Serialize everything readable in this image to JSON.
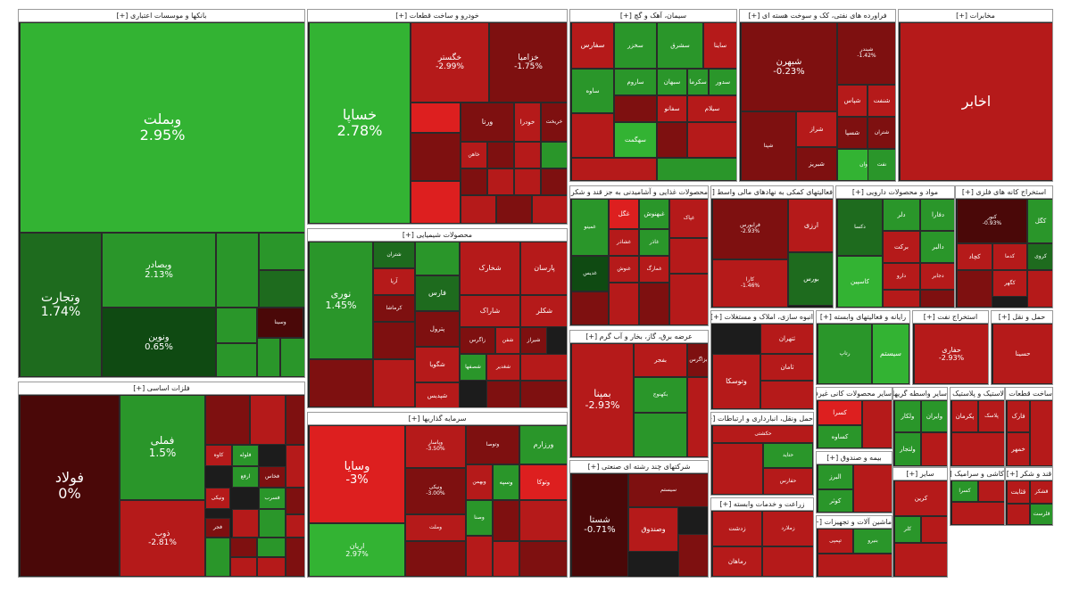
{
  "chart_data": {
    "type": "treemap",
    "title": "",
    "colors": {
      "strong_green": "#33b333",
      "green": "#2a962a",
      "dark_green": "#1e6b1e",
      "deep_green": "#0f4a12",
      "bright_red": "#dd1f1f",
      "red": "#b51a1a",
      "dark_red": "#7e1010",
      "maroon": "#4a0808"
    },
    "sectors": [
      {
        "name": "بانکها و موسسات اعتباری [+]",
        "stocks": [
          {
            "name": "وبملت",
            "change": "2.95%"
          },
          {
            "name": "وتجارت",
            "change": "1.74%"
          },
          {
            "name": "وبصادر",
            "change": "2.13%"
          },
          {
            "name": "ونوین",
            "change": "0.65%"
          },
          {
            "name": "وسینا",
            "change": ""
          }
        ]
      },
      {
        "name": "فلزات اساسی [+]",
        "stocks": [
          {
            "name": "فولاد",
            "change": "0%"
          },
          {
            "name": "فملی",
            "change": "1.5%"
          },
          {
            "name": "ذوب",
            "change": "-2.81%"
          },
          {
            "name": "کاوه",
            "change": ""
          },
          {
            "name": "فلوله",
            "change": ""
          },
          {
            "name": "فجر",
            "change": ""
          },
          {
            "name": "ارفع",
            "change": ""
          },
          {
            "name": "ونیکی",
            "change": ""
          },
          {
            "name": "فخاس",
            "change": ""
          },
          {
            "name": "فسرب",
            "change": ""
          }
        ]
      },
      {
        "name": "خودرو و ساخت قطعات [+]",
        "stocks": [
          {
            "name": "خساپا",
            "change": "2.78%"
          },
          {
            "name": "خگستر",
            "change": "-2.99%"
          },
          {
            "name": "خزامیا",
            "change": "-1.75%"
          },
          {
            "name": "ورنا",
            "change": ""
          },
          {
            "name": "خودرا",
            "change": ""
          },
          {
            "name": "خریخت",
            "change": ""
          },
          {
            "name": "خاهن",
            "change": ""
          }
        ]
      },
      {
        "name": "محصولات شیمیایی [+]",
        "stocks": [
          {
            "name": "نوری",
            "change": "1.45%"
          },
          {
            "name": "شخارک",
            "change": ""
          },
          {
            "name": "فارس",
            "change": ""
          },
          {
            "name": "پارسان",
            "change": ""
          },
          {
            "name": "شکلر",
            "change": ""
          },
          {
            "name": "شاراک",
            "change": ""
          },
          {
            "name": "پترول",
            "change": ""
          },
          {
            "name": "شگویا",
            "change": ""
          },
          {
            "name": "شپدیس",
            "change": ""
          },
          {
            "name": "شتران",
            "change": ""
          },
          {
            "name": "زاگرس",
            "change": ""
          },
          {
            "name": "شفن",
            "change": ""
          },
          {
            "name": "شیراز",
            "change": ""
          },
          {
            "name": "شصفها",
            "change": ""
          },
          {
            "name": "آریا",
            "change": ""
          },
          {
            "name": "شغدیر",
            "change": ""
          },
          {
            "name": "کرماشا",
            "change": ""
          }
        ]
      },
      {
        "name": "سرمایه گذاریها [+]",
        "stocks": [
          {
            "name": "وسایا",
            "change": "-3%"
          },
          {
            "name": "وپاسار",
            "change": "-3.50%"
          },
          {
            "name": "ونیکی",
            "change": "-3.00%"
          },
          {
            "name": "وتوصا",
            "change": ""
          },
          {
            "name": "ورزارم",
            "change": ""
          },
          {
            "name": "وبهمن",
            "change": ""
          },
          {
            "name": "وصنا",
            "change": ""
          },
          {
            "name": "وسپه",
            "change": ""
          },
          {
            "name": "وتوکا",
            "change": ""
          },
          {
            "name": "وملت",
            "change": ""
          },
          {
            "name": "اریان",
            "change": "2.97%"
          }
        ]
      },
      {
        "name": "سیمان، آهک و گچ [+]",
        "stocks": [
          {
            "name": "سفارس",
            "change": ""
          },
          {
            "name": "سشرق",
            "change": ""
          },
          {
            "name": "ساینا",
            "change": ""
          },
          {
            "name": "سخزر",
            "change": ""
          },
          {
            "name": "سبهان",
            "change": ""
          },
          {
            "name": "ساروم",
            "change": ""
          },
          {
            "name": "سکرما",
            "change": ""
          },
          {
            "name": "سدور",
            "change": ""
          },
          {
            "name": "سفانو",
            "change": ""
          },
          {
            "name": "ساوه",
            "change": ""
          },
          {
            "name": "سیلام",
            "change": ""
          },
          {
            "name": "سهگمت",
            "change": ""
          }
        ]
      },
      {
        "name": "فراورده های نفتی، کک و سوخت هسته ای [+]",
        "stocks": [
          {
            "name": "شبهرن",
            "change": "-0.23%"
          },
          {
            "name": "شبندر",
            "change": "-1.42%"
          },
          {
            "name": "شپنا",
            "change": ""
          },
          {
            "name": "شراز",
            "change": ""
          },
          {
            "name": "شپاس",
            "change": ""
          },
          {
            "name": "شنفت",
            "change": ""
          },
          {
            "name": "شسپا",
            "change": ""
          },
          {
            "name": "شتران",
            "change": ""
          },
          {
            "name": "شبریز",
            "change": ""
          },
          {
            "name": "شاوان",
            "change": ""
          },
          {
            "name": "نفت",
            "change": ""
          }
        ]
      },
      {
        "name": "مخابرات [+]",
        "stocks": [
          {
            "name": "اخابر",
            "change": ""
          }
        ]
      },
      {
        "name": "محصولات غذایی و آشامیدنی به جز قند و شکر [+]",
        "stocks": [
          {
            "name": "غمینو",
            "change": ""
          },
          {
            "name": "غگل",
            "change": ""
          },
          {
            "name": "غبهنوش",
            "change": ""
          },
          {
            "name": "غپاک",
            "change": ""
          },
          {
            "name": "غشاذر",
            "change": ""
          },
          {
            "name": "غاذر",
            "change": ""
          },
          {
            "name": "غدیس",
            "change": ""
          },
          {
            "name": "غنوش",
            "change": ""
          },
          {
            "name": "غمارگ",
            "change": ""
          }
        ]
      },
      {
        "name": "فعالیتهای کمکی به نهادهای مالی واسط [+]",
        "stocks": [
          {
            "name": "ارزی",
            "change": ""
          },
          {
            "name": "فرابورس",
            "change": "-2.93%"
          },
          {
            "name": "بورس",
            "change": ""
          },
          {
            "name": "کارا",
            "change": "-1.46%"
          }
        ]
      },
      {
        "name": "مواد و محصولات دارویی [+]",
        "stocks": [
          {
            "name": "دلر",
            "change": ""
          },
          {
            "name": "دفارا",
            "change": ""
          },
          {
            "name": "برکت",
            "change": ""
          },
          {
            "name": "دالبر",
            "change": ""
          },
          {
            "name": "دکسا",
            "change": ""
          },
          {
            "name": "کاسپین",
            "change": ""
          },
          {
            "name": "دارو",
            "change": ""
          },
          {
            "name": "دجابر",
            "change": ""
          }
        ]
      },
      {
        "name": "استخراج کانه های فلزی [+]",
        "stocks": [
          {
            "name": "کچاد",
            "change": ""
          },
          {
            "name": "کگل",
            "change": ""
          },
          {
            "name": "کنور",
            "change": "-0.93%"
          },
          {
            "name": "کدما",
            "change": ""
          },
          {
            "name": "کگهر",
            "change": ""
          },
          {
            "name": "کروی",
            "change": ""
          }
        ]
      },
      {
        "name": "عرضه برق، گاز، بخار و آب گرم [+]",
        "stocks": [
          {
            "name": "بمپنا",
            "change": "-2.93%"
          },
          {
            "name": "بفجر",
            "change": ""
          },
          {
            "name": "بزاگرس",
            "change": ""
          },
          {
            "name": "بکهنوج",
            "change": ""
          }
        ]
      },
      {
        "name": "شرکتهای چند رشته ای صنعتی [+]",
        "stocks": [
          {
            "name": "شستا",
            "change": "-0.71%"
          },
          {
            "name": "وصندوق",
            "change": ""
          },
          {
            "name": "سیستم",
            "change": ""
          }
        ]
      },
      {
        "name": "انبوه سازی، املاک و مستغلات [+]",
        "stocks": [
          {
            "name": "وتوسکا",
            "change": ""
          },
          {
            "name": "ثتهران",
            "change": ""
          },
          {
            "name": "ثامان",
            "change": ""
          }
        ]
      },
      {
        "name": "حمل ونقل، انبارداری و ارتباطات [+]",
        "stocks": [
          {
            "name": "حکشتی",
            "change": ""
          },
          {
            "name": "حتاید",
            "change": ""
          },
          {
            "name": "حفارس",
            "change": ""
          }
        ]
      },
      {
        "name": "زراعت و خدمات وابسته [+]",
        "stocks": [
          {
            "name": "زدشت",
            "change": ""
          },
          {
            "name": "زملارد",
            "change": ""
          },
          {
            "name": "رماهان",
            "change": ""
          }
        ]
      },
      {
        "name": "رایانه و فعالیتهای وابسته [+]",
        "stocks": [
          {
            "name": "سیستم",
            "change": ""
          },
          {
            "name": "رتاپ",
            "change": ""
          }
        ]
      },
      {
        "name": "استخراج نفت [+]",
        "stocks": [
          {
            "name": "حفاری",
            "change": "-2.93%"
          }
        ]
      },
      {
        "name": "حمل و نقل [+]",
        "stocks": [
          {
            "name": "حسینا",
            "change": ""
          }
        ]
      },
      {
        "name": "سایر محصولات کانی غیرفلزی [+]",
        "stocks": [
          {
            "name": "کسرا",
            "change": ""
          },
          {
            "name": "کساوه",
            "change": ""
          }
        ]
      },
      {
        "name": "بیمه و صندوق [+]",
        "stocks": [
          {
            "name": "البرز",
            "change": ""
          },
          {
            "name": "کوثر",
            "change": ""
          }
        ]
      },
      {
        "name": "ماشین آلات و تجهیزات [+]",
        "stocks": [
          {
            "name": "تپمپی",
            "change": ""
          },
          {
            "name": "بنیرو",
            "change": ""
          }
        ]
      },
      {
        "name": "سایر واسطه گریها [+]",
        "stocks": [
          {
            "name": "ولکار",
            "change": ""
          },
          {
            "name": "وایران",
            "change": ""
          },
          {
            "name": "ولتجار",
            "change": ""
          }
        ]
      },
      {
        "name": "لاستیک و پلاستیک [+]",
        "stocks": [
          {
            "name": "پکرمان",
            "change": ""
          },
          {
            "name": "پلاسک",
            "change": ""
          }
        ]
      },
      {
        "name": "ساخت قطعات [+]",
        "stocks": [
          {
            "name": "فارک",
            "change": ""
          },
          {
            "name": "خمهر",
            "change": ""
          }
        ]
      },
      {
        "name": "قند و شکر [+]",
        "stocks": [
          {
            "name": "قثابت",
            "change": ""
          },
          {
            "name": "قشکر",
            "change": ""
          },
          {
            "name": "قلرست",
            "change": ""
          }
        ]
      },
      {
        "name": "کاشی و سرامیک [+]",
        "stocks": [
          {
            "name": "کسرا",
            "change": ""
          }
        ]
      },
      {
        "name": "سایر [+]",
        "stocks": [
          {
            "name": "کرین",
            "change": ""
          },
          {
            "name": "کلر",
            "change": ""
          }
        ]
      }
    ]
  }
}
